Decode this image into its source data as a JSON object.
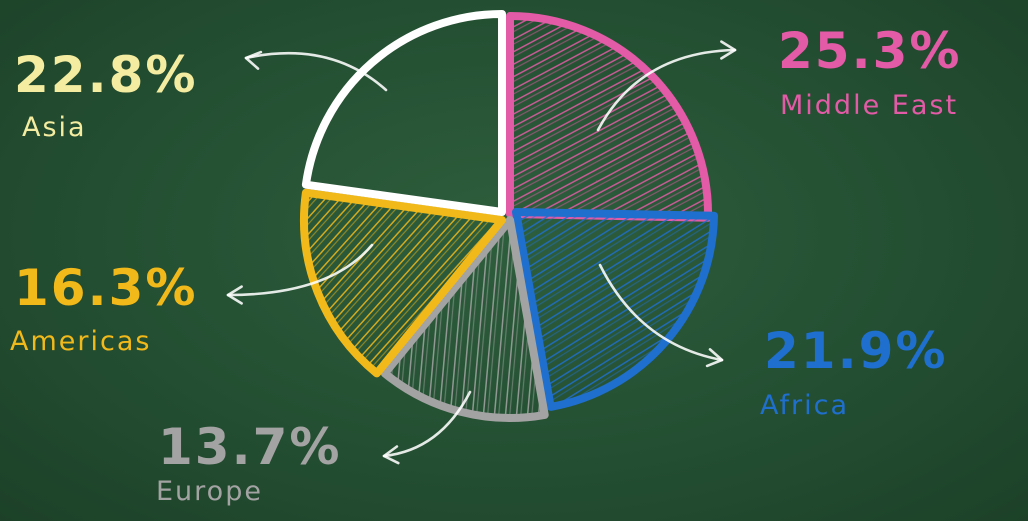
{
  "chart_data": {
    "type": "pie",
    "title": "",
    "start": "12 o'clock",
    "direction": "clockwise",
    "slices": [
      {
        "label": "Middle East",
        "value": 25.3,
        "display": "25.3%",
        "color": "#e35aa6",
        "fill": "hatched"
      },
      {
        "label": "Africa",
        "value": 21.9,
        "display": "21.9%",
        "color": "#1f6fcf",
        "fill": "hatched"
      },
      {
        "label": "Europe",
        "value": 13.7,
        "display": "13.7%",
        "color": "#a3a3a3",
        "fill": "hatched"
      },
      {
        "label": "Americas",
        "value": 16.3,
        "display": "16.3%",
        "color": "#f2b91a",
        "fill": "hatched"
      },
      {
        "label": "Asia",
        "value": 22.8,
        "display": "22.8%",
        "color": "#ffffff",
        "fill": "none",
        "text_color": "#f4eca0"
      }
    ]
  },
  "background_color": "#244f32"
}
